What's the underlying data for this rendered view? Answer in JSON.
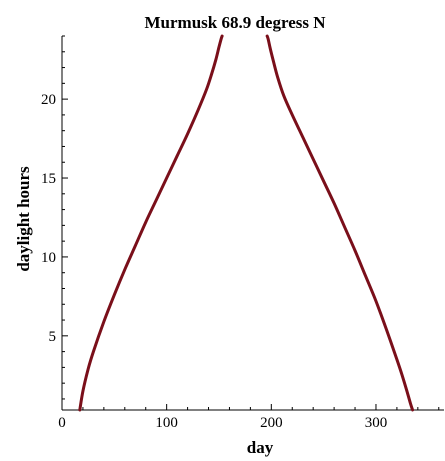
{
  "chart_data": {
    "type": "line",
    "title": "Murmusk 68.9 degress N",
    "xlabel": "day",
    "ylabel": "daylight hours",
    "xlim": [
      0,
      365
    ],
    "ylim": [
      0.3,
      24
    ],
    "x_ticks": [
      0,
      100,
      200,
      300
    ],
    "y_ticks": [
      5,
      10,
      15,
      20
    ],
    "grid": false,
    "legend": "none",
    "line_color": "#7a0f1a",
    "series": [
      {
        "x": [
          17,
          20,
          25,
          30,
          40,
          50,
          60,
          70,
          80,
          90,
          100,
          110,
          120,
          130,
          138,
          143,
          147,
          150,
          152,
          153
        ],
        "y": [
          0.3,
          1.5,
          2.9,
          4.0,
          5.9,
          7.6,
          9.2,
          10.7,
          12.2,
          13.6,
          15.0,
          16.4,
          17.8,
          19.3,
          20.6,
          21.6,
          22.5,
          23.3,
          23.8,
          24.0
        ]
      },
      {
        "x": [
          196,
          197,
          199,
          202,
          206,
          212,
          220,
          230,
          240,
          250,
          260,
          270,
          280,
          290,
          300,
          310,
          320,
          325,
          330,
          333,
          335
        ],
        "y": [
          24.0,
          23.8,
          23.2,
          22.4,
          21.4,
          20.2,
          19.0,
          17.6,
          16.2,
          14.8,
          13.4,
          11.9,
          10.4,
          8.8,
          7.2,
          5.4,
          3.5,
          2.5,
          1.4,
          0.7,
          0.3
        ]
      }
    ]
  }
}
